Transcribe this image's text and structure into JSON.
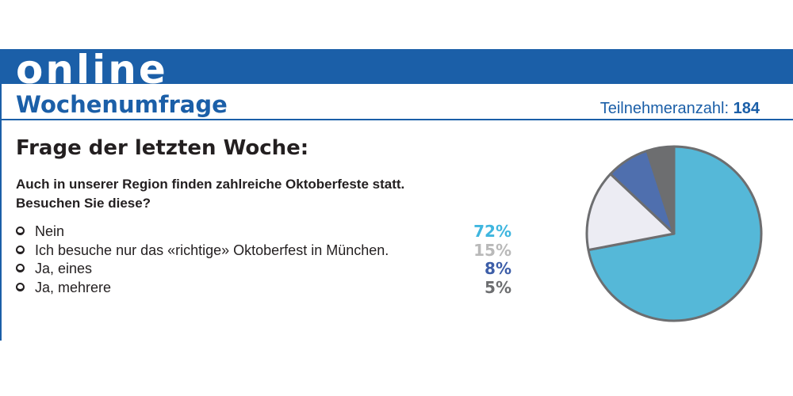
{
  "header": {
    "banner_word": "online",
    "section_title": "Wochenumfrage",
    "participants_label": "Teilnehmeranzahl:",
    "participants_count": "184"
  },
  "poll": {
    "heading": "Frage der letzten Woche:",
    "question_line1": "Auch in unserer Region finden zahlreiche Oktoberfeste statt.",
    "question_line2": "Besuchen Sie diese?"
  },
  "colors": {
    "brand_blue": "#1b5fa8",
    "nein": "#55b8d8",
    "richtige": "#ececf3",
    "ja_eines": "#4f6fae",
    "ja_mehrere": "#6d6e70",
    "pct_nein": "#3fb6df",
    "pct_richtige": "#b9b9b9",
    "pct_ja_eines": "#3d5ea8",
    "pct_ja_mehrere": "#6d6e70"
  },
  "chart_data": {
    "type": "pie",
    "categories": [
      "Nein",
      "Ich besuche nur das «richtige» Oktoberfest in München.",
      "Ja, eines",
      "Ja, mehrere"
    ],
    "values": [
      72,
      15,
      8,
      5
    ],
    "value_labels": [
      "72%",
      "15%",
      "8%",
      "5%"
    ]
  }
}
